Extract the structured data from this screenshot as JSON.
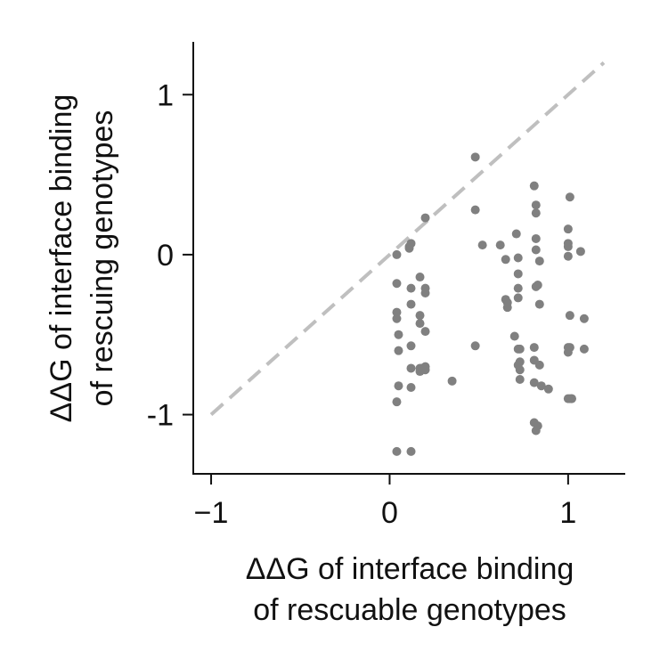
{
  "chart_data": {
    "type": "scatter",
    "xlabel": [
      "ΔΔG of interface binding",
      "of rescuable genotypes"
    ],
    "ylabel": [
      "ΔΔG of interface binding",
      "of rescuing genotypes"
    ],
    "xlim": [
      -1.1,
      1.32
    ],
    "ylim": [
      -1.37,
      1.33
    ],
    "x_ticks": [
      {
        "value": -1,
        "label": "−1"
      },
      {
        "value": 0,
        "label": "0"
      },
      {
        "value": 1,
        "label": "1"
      }
    ],
    "y_ticks": [
      {
        "value": 1,
        "label": "1"
      },
      {
        "value": 0,
        "label": "0"
      },
      {
        "value": -1,
        "label": "-1"
      }
    ],
    "reference_line": {
      "x": [
        -1,
        1.2
      ],
      "y": [
        -1,
        1.2
      ],
      "style": "dashed",
      "color": "#bfbfbf"
    },
    "point_color": "#808080",
    "grid": false,
    "x": [
      0.04,
      0.04,
      0.04,
      0.04,
      0.05,
      0.05,
      0.05,
      0.04,
      0.04,
      0.11,
      0.12,
      0.12,
      0.12,
      0.12,
      0.12,
      0.12,
      0.12,
      0.11,
      0.17,
      0.17,
      0.17,
      0.17,
      0.18,
      0.17,
      0.2,
      0.2,
      0.2,
      0.2,
      0.2,
      0.2,
      0.35,
      0.48,
      0.48,
      0.48,
      0.52,
      0.62,
      0.65,
      0.65,
      0.66,
      0.66,
      0.7,
      0.71,
      0.72,
      0.72,
      0.72,
      0.72,
      0.73,
      0.73,
      0.73,
      0.73,
      0.72,
      0.72,
      0.81,
      0.82,
      0.82,
      0.82,
      0.82,
      0.82,
      0.81,
      0.81,
      0.81,
      0.82,
      0.81,
      0.84,
      0.83,
      0.84,
      0.84,
      0.85,
      0.83,
      0.89,
      1.0,
      1.0,
      1.0,
      1.0,
      1.0,
      1.0,
      1.0,
      1.01,
      1.01,
      1.01,
      1.02,
      1.02,
      1.01,
      1.07,
      1.09,
      1.09
    ],
    "y": [
      0.0,
      -0.18,
      -0.36,
      -0.4,
      -0.5,
      -0.6,
      -0.82,
      -0.92,
      -1.23,
      0.05,
      0.07,
      -0.21,
      -0.31,
      -0.57,
      -0.71,
      -0.83,
      -1.23,
      0.04,
      -0.14,
      -0.38,
      -0.43,
      -0.73,
      -0.71,
      -0.71,
      0.23,
      -0.21,
      -0.24,
      -0.48,
      -0.7,
      -0.72,
      -0.79,
      0.61,
      0.28,
      -0.57,
      0.06,
      0.06,
      -0.03,
      -0.28,
      -0.3,
      -0.33,
      -0.51,
      0.13,
      -0.02,
      -0.12,
      -0.21,
      -0.27,
      -0.59,
      -0.67,
      -0.78,
      -0.72,
      -0.69,
      -0.59,
      0.43,
      0.31,
      0.26,
      0.1,
      0.03,
      -0.2,
      -0.58,
      -0.66,
      -0.8,
      -1.1,
      -1.05,
      -0.04,
      -0.19,
      -0.31,
      -0.69,
      -0.82,
      -1.07,
      -0.84,
      0.16,
      0.07,
      0.05,
      -0.01,
      -0.58,
      -0.61,
      -0.9,
      0.36,
      -0.38,
      -0.9,
      -0.9,
      -0.9,
      -0.58,
      0.02,
      -0.4,
      -0.59
    ]
  }
}
